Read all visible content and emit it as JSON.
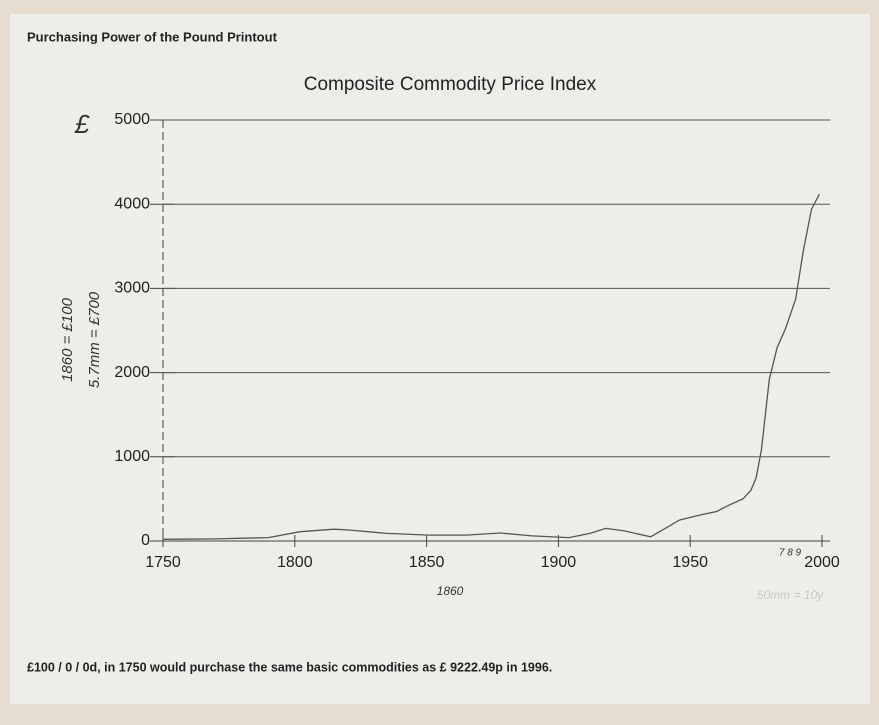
{
  "header": "Purchasing Power of the Pound Printout",
  "footnote": "£100 / 0 / 0d, in 1750 would purchase the same basic commodities as £ 9222.49p in 1996.",
  "chart_data": {
    "type": "line",
    "title": "Composite Commodity Price Index",
    "x": [
      1750,
      1770,
      1790,
      1802,
      1815,
      1821,
      1835,
      1851,
      1865,
      1878,
      1890,
      1904,
      1912,
      1918,
      1925,
      1935,
      1946,
      1954,
      1960,
      1965,
      1970,
      1973,
      1975,
      1977,
      1980,
      1983,
      1986,
      1990,
      1993,
      1996,
      1999
    ],
    "values": [
      20,
      25,
      40,
      110,
      140,
      130,
      90,
      70,
      70,
      95,
      60,
      40,
      90,
      150,
      120,
      50,
      250,
      310,
      350,
      430,
      500,
      600,
      750,
      1080,
      1920,
      2300,
      2510,
      2870,
      3460,
      3940,
      4120
    ],
    "color": "#555555",
    "xlim": [
      1750,
      2000
    ],
    "xticks": [
      1750,
      1800,
      1850,
      1900,
      1950,
      2000
    ],
    "ylim": [
      0,
      5000
    ],
    "yticks": [
      0,
      1000,
      2000,
      3000,
      4000,
      5000
    ],
    "grid": true,
    "annotations": [
      "£",
      "1860 = £100",
      "5.7mm = £700",
      "1860",
      "7 8 9",
      "50mm = 10y"
    ]
  }
}
